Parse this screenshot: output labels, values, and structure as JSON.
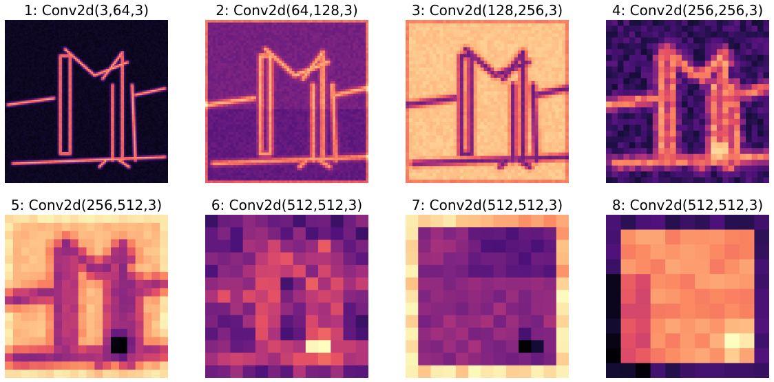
{
  "figure": {
    "colormap": "magma",
    "panels": [
      {
        "title": "1: Conv2d(3,64,3)",
        "grid": 100,
        "style": "edges-dark"
      },
      {
        "title": "2: Conv2d(64,128,3)",
        "grid": 64,
        "style": "edges-purple"
      },
      {
        "title": "3: Conv2d(128,256,3)",
        "grid": 48,
        "style": "edges-light"
      },
      {
        "title": "4: Conv2d(256,256,3)",
        "grid": 28,
        "style": "blobs-dark"
      },
      {
        "title": "5: Conv2d(256,512,3)",
        "grid": 20,
        "style": "blobs-light"
      },
      {
        "title": "6: Conv2d(512,512,3)",
        "grid": 13,
        "style": "coarse-dark"
      },
      {
        "title": "7: Conv2d(512,512,3)",
        "grid": 13,
        "style": "coarse-frame-light"
      },
      {
        "title": "8: Conv2d(512,512,3)",
        "grid": 11,
        "style": "coarse-bright-center"
      }
    ]
  }
}
